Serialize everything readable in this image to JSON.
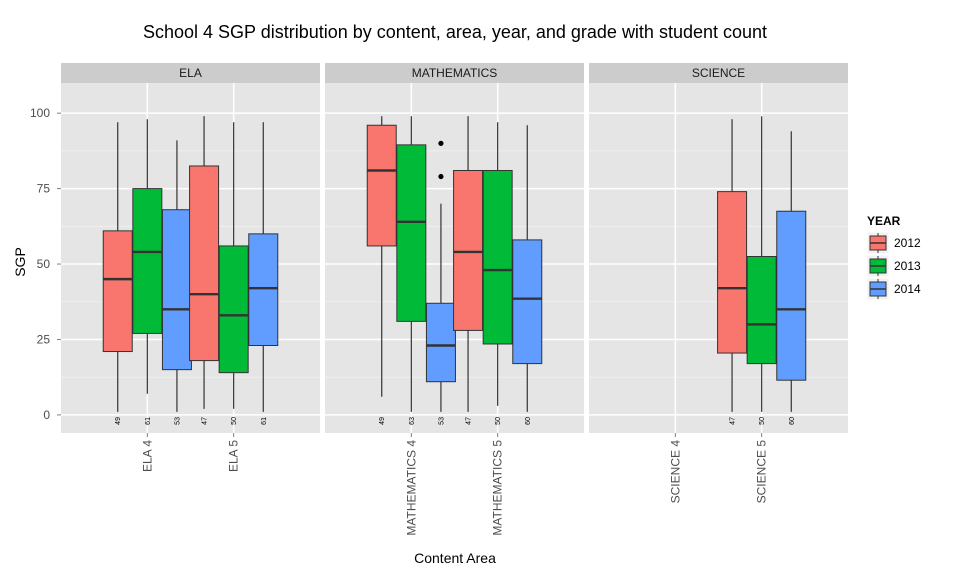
{
  "chart_data": {
    "type": "boxplot",
    "title": "School 4 SGP distribution by content, area, year, and grade with student count",
    "xlabel": "Content Area",
    "ylabel": "SGP",
    "ylim": [
      -6,
      110
    ],
    "yticks": [
      0,
      25,
      50,
      75,
      100
    ],
    "grid": true,
    "legend": {
      "title": "YEAR",
      "position": "right",
      "entries": [
        "2012",
        "2013",
        "2014"
      ]
    },
    "colors": {
      "2012": "#F8766D",
      "2013": "#00BA38",
      "2014": "#619CFF"
    },
    "panels": [
      {
        "name": "ELA",
        "categories": [
          "ELA 4",
          "ELA 5"
        ],
        "boxes": [
          {
            "category": "ELA 4",
            "year": "2012",
            "min": 1,
            "q1": 21,
            "median": 45,
            "q3": 61,
            "max": 97,
            "n": "49",
            "outliers": []
          },
          {
            "category": "ELA 4",
            "year": "2013",
            "min": 7,
            "q1": 27,
            "median": 54,
            "q3": 75,
            "max": 98,
            "n": "61",
            "outliers": []
          },
          {
            "category": "ELA 4",
            "year": "2014",
            "min": 1,
            "q1": 15,
            "median": 35,
            "q3": 68,
            "max": 91,
            "n": "53",
            "outliers": []
          },
          {
            "category": "ELA 5",
            "year": "2012",
            "min": 2,
            "q1": 18,
            "median": 40,
            "q3": 82.5,
            "max": 99,
            "n": "47",
            "outliers": []
          },
          {
            "category": "ELA 5",
            "year": "2013",
            "min": 2,
            "q1": 14,
            "median": 33,
            "q3": 56,
            "max": 97,
            "n": "50",
            "outliers": []
          },
          {
            "category": "ELA 5",
            "year": "2014",
            "min": 1,
            "q1": 23,
            "median": 42,
            "q3": 60,
            "max": 97,
            "n": "61",
            "outliers": []
          }
        ]
      },
      {
        "name": "MATHEMATICS",
        "categories": [
          "MATHEMATICS 4",
          "MATHEMATICS 5"
        ],
        "boxes": [
          {
            "category": "MATHEMATICS 4",
            "year": "2012",
            "min": 6,
            "q1": 56,
            "median": 81,
            "q3": 96,
            "max": 99,
            "n": "49",
            "outliers": []
          },
          {
            "category": "MATHEMATICS 4",
            "year": "2013",
            "min": 1,
            "q1": 31,
            "median": 64,
            "q3": 89.5,
            "max": 99,
            "n": "63",
            "outliers": []
          },
          {
            "category": "MATHEMATICS 4",
            "year": "2014",
            "min": 1,
            "q1": 11,
            "median": 23,
            "q3": 37,
            "max": 70,
            "n": "53",
            "outliers": [
              79,
              90
            ]
          },
          {
            "category": "MATHEMATICS 5",
            "year": "2012",
            "min": 1,
            "q1": 28,
            "median": 54,
            "q3": 81,
            "max": 99,
            "n": "47",
            "outliers": []
          },
          {
            "category": "MATHEMATICS 5",
            "year": "2013",
            "min": 3,
            "q1": 23.5,
            "median": 48,
            "q3": 81,
            "max": 97,
            "n": "50",
            "outliers": []
          },
          {
            "category": "MATHEMATICS 5",
            "year": "2014",
            "min": 1,
            "q1": 17,
            "median": 38.5,
            "q3": 58,
            "max": 96,
            "n": "60",
            "outliers": []
          }
        ]
      },
      {
        "name": "SCIENCE",
        "categories": [
          "SCIENCE 4",
          "SCIENCE 5"
        ],
        "boxes": [
          {
            "category": "SCIENCE 5",
            "year": "2012",
            "min": 1,
            "q1": 20.5,
            "median": 42,
            "q3": 74,
            "max": 98,
            "n": "47",
            "outliers": []
          },
          {
            "category": "SCIENCE 5",
            "year": "2013",
            "min": 1,
            "q1": 17,
            "median": 30,
            "q3": 52.5,
            "max": 99,
            "n": "50",
            "outliers": []
          },
          {
            "category": "SCIENCE 5",
            "year": "2014",
            "min": 1,
            "q1": 11.5,
            "median": 35,
            "q3": 67.5,
            "max": 94,
            "n": "60",
            "outliers": []
          }
        ]
      }
    ]
  }
}
